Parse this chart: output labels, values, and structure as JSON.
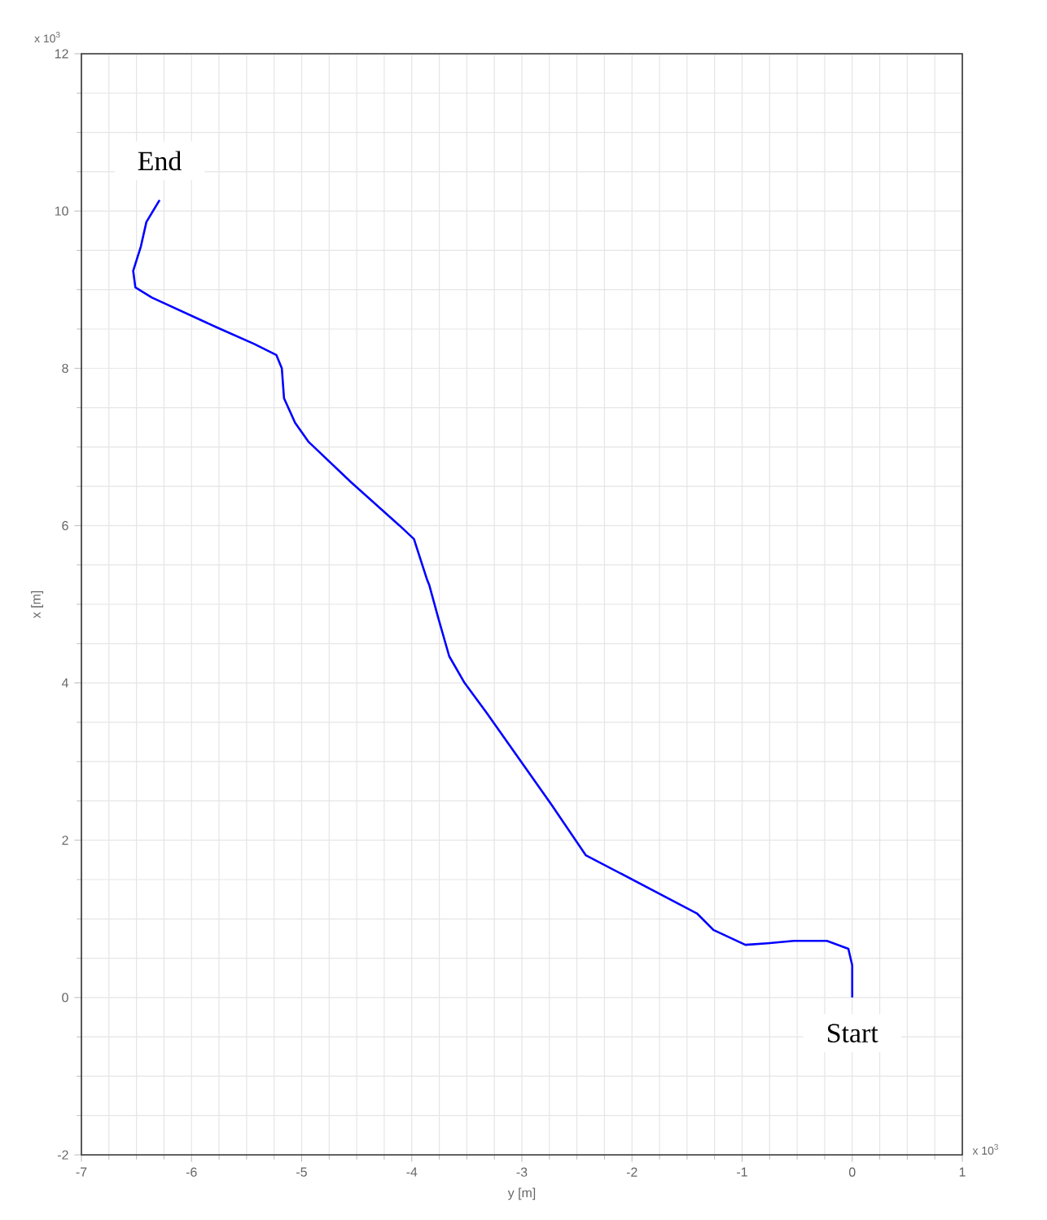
{
  "chart_data": {
    "type": "line",
    "xlabel": "y [m]",
    "ylabel": "x [m]",
    "xlim": [
      -7,
      1
    ],
    "ylim": [
      -2,
      12
    ],
    "xticks": [
      -7,
      -6,
      -5,
      -4,
      -3,
      -2,
      -1,
      0,
      1
    ],
    "yticks": [
      -2,
      0,
      2,
      4,
      6,
      8,
      10,
      12
    ],
    "grid": true,
    "marker": "none",
    "line_style": "solid",
    "series": [
      {
        "color": "#0000ff",
        "x": [
          0,
          0,
          -0.035,
          -0.23,
          -0.53,
          -0.77,
          -0.97,
          -1.26,
          -1.41,
          -2.42,
          -2.73,
          -3.32,
          -3.52,
          -3.66,
          -3.76,
          -3.84,
          -3.86,
          -3.98,
          -4.11,
          -4.55,
          -4.94,
          -5.06,
          -5.16,
          -5.18,
          -5.23,
          -5.43,
          -5.77,
          -6.36,
          -6.51,
          -6.53,
          -6.46,
          -6.41,
          -6.29
        ],
        "values": [
          0,
          0.41,
          0.62,
          0.72,
          0.72,
          0.69,
          0.67,
          0.86,
          1.07,
          1.81,
          2.45,
          3.62,
          4.0,
          4.34,
          4.83,
          5.24,
          5.31,
          5.83,
          6.0,
          6.55,
          7.07,
          7.31,
          7.62,
          8.0,
          8.17,
          8.31,
          8.52,
          8.9,
          9.03,
          9.24,
          9.55,
          9.86,
          10.14
        ]
      }
    ],
    "annotations": [
      "x 10$^{3}$",
      "x 10$^{3}$",
      {
        "text": "Start",
        "x": 0,
        "y": 0
      },
      {
        "text": "End",
        "x": -6.29,
        "y": 10.14
      }
    ]
  }
}
